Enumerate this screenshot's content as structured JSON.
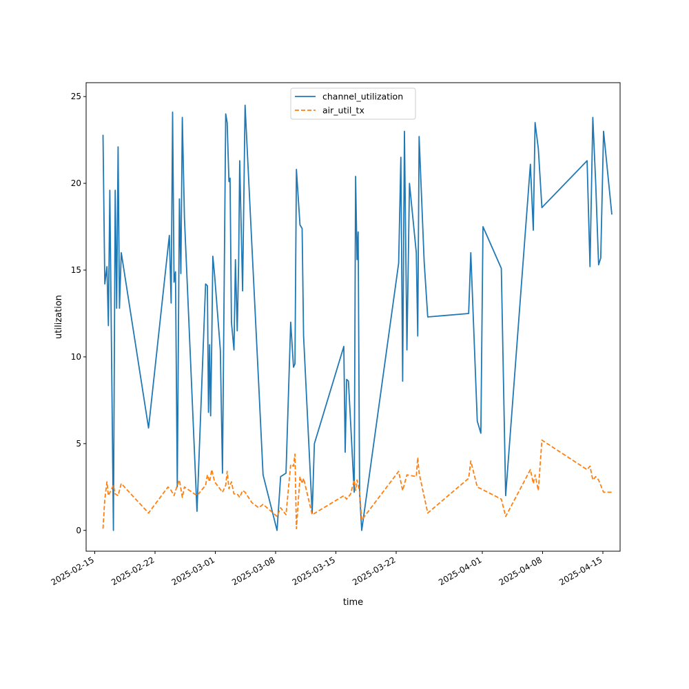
{
  "chart_data": {
    "type": "line",
    "title": "",
    "xlabel": "time",
    "ylabel": "utilization",
    "x_axis_kind": "date",
    "xlim": [
      "2025-02-14",
      "2025-04-17"
    ],
    "ylim": [
      -1.2,
      25.8
    ],
    "grid": false,
    "legend_position": "top-center",
    "x_tick_labels": [
      "2025-02-15",
      "2025-02-22",
      "2025-03-01",
      "2025-03-08",
      "2025-03-15",
      "2025-03-22",
      "2025-04-01",
      "2025-04-08",
      "2025-04-15"
    ],
    "y_ticks": [
      0,
      5,
      10,
      15,
      20,
      25
    ],
    "series": [
      {
        "name": "channel_utilization",
        "color": "#1f77b4",
        "style": "solid",
        "points": [
          [
            "2025-02-15 23:00",
            22.8
          ],
          [
            "2025-02-16 04:00",
            14.2
          ],
          [
            "2025-02-16 10:00",
            15.2
          ],
          [
            "2025-02-16 14:00",
            11.8
          ],
          [
            "2025-02-16 18:00",
            19.6
          ],
          [
            "2025-02-17 04:00",
            0.0
          ],
          [
            "2025-02-17 09:00",
            19.6
          ],
          [
            "2025-02-17 13:00",
            12.8
          ],
          [
            "2025-02-17 17:00",
            22.1
          ],
          [
            "2025-02-17 21:00",
            12.8
          ],
          [
            "2025-02-18 02:00",
            16.0
          ],
          [
            "2025-02-21 06:00",
            5.9
          ],
          [
            "2025-02-23 16:00",
            17.0
          ],
          [
            "2025-02-23 21:00",
            13.1
          ],
          [
            "2025-02-24 01:00",
            24.1
          ],
          [
            "2025-02-24 05:00",
            14.3
          ],
          [
            "2025-02-24 09:00",
            14.9
          ],
          [
            "2025-02-24 14:00",
            2.5
          ],
          [
            "2025-02-24 20:00",
            19.1
          ],
          [
            "2025-02-25 00:00",
            14.8
          ],
          [
            "2025-02-25 04:00",
            23.8
          ],
          [
            "2025-02-25 10:00",
            18.0
          ],
          [
            "2025-02-26 21:00",
            1.1
          ],
          [
            "2025-02-27 21:00",
            14.2
          ],
          [
            "2025-02-28 02:00",
            14.1
          ],
          [
            "2025-02-28 05:00",
            6.8
          ],
          [
            "2025-02-28 08:00",
            10.7
          ],
          [
            "2025-02-28 11:00",
            6.6
          ],
          [
            "2025-02-28 14:00",
            10.7
          ],
          [
            "2025-02-28 17:00",
            15.8
          ],
          [
            "2025-02-28 22:00",
            14.7
          ],
          [
            "2025-03-01 14:00",
            10.4
          ],
          [
            "2025-03-01 20:00",
            3.3
          ],
          [
            "2025-03-02 05:00",
            24.0
          ],
          [
            "2025-03-02 09:00",
            23.5
          ],
          [
            "2025-03-02 14:00",
            20.1
          ],
          [
            "2025-03-02 17:00",
            20.3
          ],
          [
            "2025-03-02 21:00",
            12.0
          ],
          [
            "2025-03-03 04:00",
            10.4
          ],
          [
            "2025-03-03 08:00",
            15.6
          ],
          [
            "2025-03-03 13:00",
            11.5
          ],
          [
            "2025-03-03 17:00",
            15.5
          ],
          [
            "2025-03-03 20:00",
            21.3
          ],
          [
            "2025-03-04 04:00",
            13.8
          ],
          [
            "2025-03-04 11:00",
            24.5
          ],
          [
            "2025-03-05 06:00",
            16.4
          ],
          [
            "2025-03-06 01:00",
            8.4
          ],
          [
            "2025-03-06 13:00",
            3.2
          ],
          [
            "2025-03-08 04:00",
            0.0
          ],
          [
            "2025-03-08 14:00",
            3.1
          ],
          [
            "2025-03-09 05:00",
            3.3
          ],
          [
            "2025-03-09 18:00",
            12.0
          ],
          [
            "2025-03-10 02:00",
            9.4
          ],
          [
            "2025-03-10 06:00",
            9.6
          ],
          [
            "2025-03-10 10:00",
            20.8
          ],
          [
            "2025-03-10 20:00",
            17.6
          ],
          [
            "2025-03-11 02:00",
            17.4
          ],
          [
            "2025-03-11 06:00",
            11.2
          ],
          [
            "2025-03-12 06:00",
            1.0
          ],
          [
            "2025-03-12 12:00",
            5.0
          ],
          [
            "2025-03-15 22:00",
            10.6
          ],
          [
            "2025-03-16 02:00",
            4.5
          ],
          [
            "2025-03-16 06:00",
            8.7
          ],
          [
            "2025-03-16 11:00",
            8.6
          ],
          [
            "2025-03-16 17:00",
            6.2
          ],
          [
            "2025-03-17 03:00",
            2.2
          ],
          [
            "2025-03-17 07:00",
            20.4
          ],
          [
            "2025-03-17 11:00",
            15.6
          ],
          [
            "2025-03-17 14:00",
            17.2
          ],
          [
            "2025-03-17 18:00",
            2.2
          ],
          [
            "2025-03-18 00:00",
            0.0
          ],
          [
            "2025-03-22 07:00",
            15.4
          ],
          [
            "2025-03-22 13:00",
            21.5
          ],
          [
            "2025-03-22 18:00",
            8.6
          ],
          [
            "2025-03-22 23:00",
            23.0
          ],
          [
            "2025-03-23 06:00",
            10.4
          ],
          [
            "2025-03-23 13:00",
            20.0
          ],
          [
            "2025-03-24 08:00",
            16.0
          ],
          [
            "2025-03-24 12:00",
            11.2
          ],
          [
            "2025-03-24 16:00",
            22.7
          ],
          [
            "2025-03-25 06:00",
            15.5
          ],
          [
            "2025-03-25 16:00",
            12.3
          ],
          [
            "2025-03-30 10:00",
            12.5
          ],
          [
            "2025-03-30 16:00",
            16.0
          ],
          [
            "2025-03-31 10:00",
            6.3
          ],
          [
            "2025-03-31 20:00",
            5.6
          ],
          [
            "2025-04-01 02:00",
            17.5
          ],
          [
            "2025-04-03 05:00",
            15.1
          ],
          [
            "2025-04-03 17:00",
            2.0
          ],
          [
            "2025-04-06 14:00",
            21.1
          ],
          [
            "2025-04-06 22:00",
            17.3
          ],
          [
            "2025-04-07 03:00",
            23.5
          ],
          [
            "2025-04-07 12:00",
            22.0
          ],
          [
            "2025-04-07 22:00",
            18.6
          ],
          [
            "2025-04-13 04:00",
            21.3
          ],
          [
            "2025-04-13 12:00",
            15.2
          ],
          [
            "2025-04-13 20:00",
            23.8
          ],
          [
            "2025-04-14 04:00",
            20.0
          ],
          [
            "2025-04-14 12:00",
            15.3
          ],
          [
            "2025-04-14 18:00",
            15.7
          ],
          [
            "2025-04-15 02:00",
            23.0
          ],
          [
            "2025-04-16 01:00",
            18.2
          ]
        ]
      },
      {
        "name": "air_util_tx",
        "color": "#ff7f0e",
        "style": "dashed",
        "points": [
          [
            "2025-02-15 23:00",
            0.1
          ],
          [
            "2025-02-16 04:00",
            1.8
          ],
          [
            "2025-02-16 10:00",
            2.8
          ],
          [
            "2025-02-16 14:00",
            2.0
          ],
          [
            "2025-02-17 04:00",
            2.6
          ],
          [
            "2025-02-17 09:00",
            2.1
          ],
          [
            "2025-02-17 17:00",
            2.0
          ],
          [
            "2025-02-18 02:00",
            2.7
          ],
          [
            "2025-02-21 06:00",
            1.0
          ],
          [
            "2025-02-23 12:00",
            2.5
          ],
          [
            "2025-02-23 21:00",
            2.3
          ],
          [
            "2025-02-24 05:00",
            2.0
          ],
          [
            "2025-02-24 14:00",
            2.6
          ],
          [
            "2025-02-24 20:00",
            2.9
          ],
          [
            "2025-02-25 04:00",
            1.9
          ],
          [
            "2025-02-25 10:00",
            2.5
          ],
          [
            "2025-02-26 21:00",
            2.0
          ],
          [
            "2025-02-27 21:00",
            2.6
          ],
          [
            "2025-02-28 02:00",
            3.2
          ],
          [
            "2025-02-28 08:00",
            2.8
          ],
          [
            "2025-02-28 14:00",
            3.5
          ],
          [
            "2025-02-28 22:00",
            2.8
          ],
          [
            "2025-03-01 20:00",
            2.2
          ],
          [
            "2025-03-02 05:00",
            2.6
          ],
          [
            "2025-03-02 09:00",
            3.4
          ],
          [
            "2025-03-02 14:00",
            2.4
          ],
          [
            "2025-03-02 21:00",
            2.8
          ],
          [
            "2025-03-03 04:00",
            2.1
          ],
          [
            "2025-03-03 13:00",
            2.1
          ],
          [
            "2025-03-03 20:00",
            1.9
          ],
          [
            "2025-03-04 04:00",
            2.3
          ],
          [
            "2025-03-04 11:00",
            2.2
          ],
          [
            "2025-03-05 06:00",
            1.6
          ],
          [
            "2025-03-06 01:00",
            1.3
          ],
          [
            "2025-03-06 13:00",
            1.5
          ],
          [
            "2025-03-08 04:00",
            0.8
          ],
          [
            "2025-03-08 14:00",
            1.3
          ],
          [
            "2025-03-09 05:00",
            0.9
          ],
          [
            "2025-03-09 18:00",
            3.8
          ],
          [
            "2025-03-10 02:00",
            3.7
          ],
          [
            "2025-03-10 06:00",
            4.4
          ],
          [
            "2025-03-10 10:00",
            0.1
          ],
          [
            "2025-03-10 20:00",
            3.1
          ],
          [
            "2025-03-11 02:00",
            2.7
          ],
          [
            "2025-03-11 06:00",
            3.0
          ],
          [
            "2025-03-12 06:00",
            0.9
          ],
          [
            "2025-03-15 22:00",
            2.0
          ],
          [
            "2025-03-16 06:00",
            1.8
          ],
          [
            "2025-03-16 17:00",
            2.1
          ],
          [
            "2025-03-17 03:00",
            2.9
          ],
          [
            "2025-03-17 07:00",
            2.3
          ],
          [
            "2025-03-17 11:00",
            2.9
          ],
          [
            "2025-03-17 18:00",
            2.2
          ],
          [
            "2025-03-18 00:00",
            0.6
          ],
          [
            "2025-03-22 07:00",
            3.4
          ],
          [
            "2025-03-22 18:00",
            2.3
          ],
          [
            "2025-03-23 06:00",
            3.2
          ],
          [
            "2025-03-24 08:00",
            3.1
          ],
          [
            "2025-03-24 12:00",
            4.2
          ],
          [
            "2025-03-24 16:00",
            3.3
          ],
          [
            "2025-03-25 16:00",
            1.0
          ],
          [
            "2025-03-30 10:00",
            3.0
          ],
          [
            "2025-03-30 16:00",
            4.0
          ],
          [
            "2025-03-31 10:00",
            2.5
          ],
          [
            "2025-03-31 20:00",
            2.4
          ],
          [
            "2025-04-03 05:00",
            1.8
          ],
          [
            "2025-04-03 17:00",
            0.8
          ],
          [
            "2025-04-06 14:00",
            3.5
          ],
          [
            "2025-04-06 22:00",
            2.7
          ],
          [
            "2025-04-07 03:00",
            3.2
          ],
          [
            "2025-04-07 12:00",
            2.3
          ],
          [
            "2025-04-07 22:00",
            5.2
          ],
          [
            "2025-04-13 04:00",
            3.5
          ],
          [
            "2025-04-13 12:00",
            3.7
          ],
          [
            "2025-04-13 20:00",
            2.9
          ],
          [
            "2025-04-14 04:00",
            3.1
          ],
          [
            "2025-04-14 12:00",
            2.9
          ],
          [
            "2025-04-15 02:00",
            2.2
          ],
          [
            "2025-04-16 01:00",
            2.2
          ]
        ]
      }
    ]
  }
}
